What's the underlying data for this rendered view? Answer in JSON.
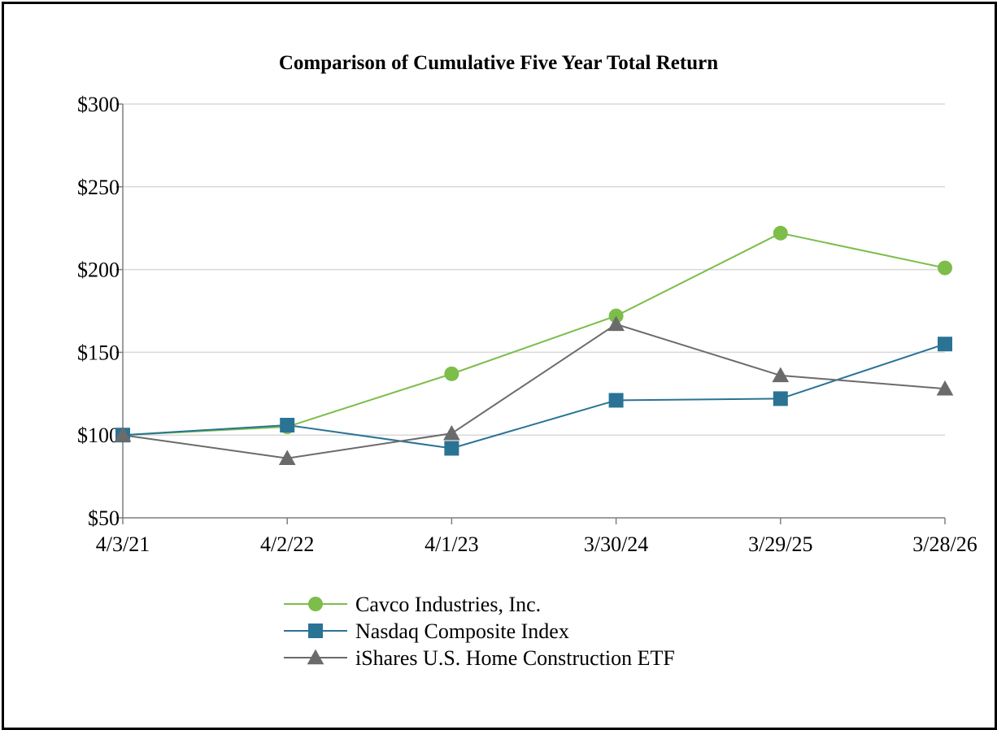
{
  "chart_data": {
    "type": "line",
    "title": "Comparison of Cumulative Five Year Total Return",
    "xlabel": "",
    "ylabel": "",
    "categories": [
      "4/3/21",
      "4/2/22",
      "4/1/23",
      "3/30/24",
      "3/29/25",
      "3/28/26"
    ],
    "y_ticks": [
      "$50",
      "$100",
      "$150",
      "$200",
      "$250",
      "$300"
    ],
    "ylim": [
      50,
      300
    ],
    "grid": true,
    "legend_position": "bottom",
    "series": [
      {
        "name": "Cavco Industries, Inc.",
        "color": "#7dbd4a",
        "marker": "circle",
        "values": [
          100,
          105,
          137,
          172,
          222,
          201
        ]
      },
      {
        "name": "Nasdaq Composite Index",
        "color": "#2a7395",
        "marker": "square",
        "values": [
          100,
          106,
          92,
          121,
          122,
          155
        ]
      },
      {
        "name": "iShares U.S. Home Construction ETF",
        "color": "#6b6b6b",
        "marker": "triangle",
        "values": [
          100,
          86,
          101,
          167,
          136,
          128
        ]
      }
    ]
  }
}
